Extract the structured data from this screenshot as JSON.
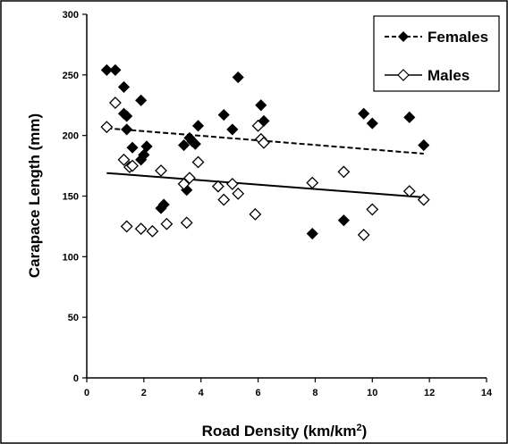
{
  "chart_data": {
    "type": "scatter",
    "xlabel": "Road Density (km/km",
    "xlabel_sup": "2",
    "xlabel_tail": ")",
    "ylabel": "Carapace Length (mm)",
    "xlim": [
      0,
      14
    ],
    "ylim": [
      0,
      300
    ],
    "x_ticks": [
      "0",
      "2",
      "4",
      "6",
      "8",
      "10",
      "12",
      "14"
    ],
    "y_ticks": [
      "0",
      "50",
      "100",
      "150",
      "200",
      "250",
      "300"
    ],
    "grid": false,
    "legend_position": "top-right",
    "series": [
      {
        "name": "Females",
        "marker": "filled-diamond",
        "color": "#000000",
        "trendline": {
          "style": "dashed",
          "x": [
            0.7,
            11.8
          ],
          "y": [
            206,
            185
          ]
        },
        "points": [
          [
            0.7,
            254
          ],
          [
            1.0,
            254
          ],
          [
            1.3,
            240
          ],
          [
            1.3,
            218
          ],
          [
            1.4,
            216
          ],
          [
            1.4,
            205
          ],
          [
            1.6,
            190
          ],
          [
            1.9,
            229
          ],
          [
            1.9,
            180
          ],
          [
            2.0,
            184
          ],
          [
            2.1,
            191
          ],
          [
            2.6,
            140
          ],
          [
            2.7,
            143
          ],
          [
            3.4,
            192
          ],
          [
            3.5,
            155
          ],
          [
            3.6,
            198
          ],
          [
            3.7,
            195
          ],
          [
            3.8,
            193
          ],
          [
            3.9,
            208
          ],
          [
            4.8,
            217
          ],
          [
            5.1,
            205
          ],
          [
            5.3,
            248
          ],
          [
            6.1,
            225
          ],
          [
            6.2,
            212
          ],
          [
            7.9,
            119
          ],
          [
            9.0,
            130
          ],
          [
            9.7,
            218
          ],
          [
            10.0,
            210
          ],
          [
            11.3,
            215
          ],
          [
            11.8,
            192
          ]
        ]
      },
      {
        "name": "Males",
        "marker": "open-diamond",
        "color": "#000000",
        "trendline": {
          "style": "solid",
          "x": [
            0.7,
            11.8
          ],
          "y": [
            169,
            149
          ]
        },
        "points": [
          [
            0.7,
            207
          ],
          [
            1.0,
            227
          ],
          [
            1.3,
            180
          ],
          [
            1.4,
            125
          ],
          [
            1.5,
            174
          ],
          [
            1.6,
            175
          ],
          [
            1.9,
            123
          ],
          [
            2.3,
            121
          ],
          [
            2.6,
            171
          ],
          [
            2.8,
            127
          ],
          [
            3.4,
            160
          ],
          [
            3.5,
            128
          ],
          [
            3.6,
            165
          ],
          [
            3.9,
            178
          ],
          [
            4.6,
            158
          ],
          [
            4.8,
            147
          ],
          [
            5.1,
            160
          ],
          [
            5.3,
            152
          ],
          [
            5.9,
            135
          ],
          [
            6.0,
            208
          ],
          [
            6.1,
            197
          ],
          [
            6.2,
            194
          ],
          [
            7.9,
            161
          ],
          [
            9.0,
            170
          ],
          [
            9.7,
            118
          ],
          [
            10.0,
            139
          ],
          [
            11.3,
            154
          ],
          [
            11.8,
            147
          ]
        ]
      }
    ]
  }
}
